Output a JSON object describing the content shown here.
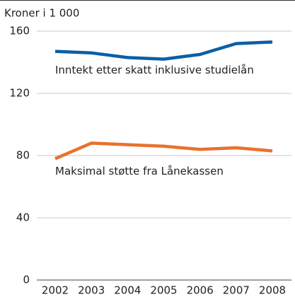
{
  "chart_data": {
    "type": "line",
    "y_axis_label": "Kroner i 1 000",
    "x": [
      "2002",
      "2003",
      "2004",
      "2005",
      "2006",
      "2007",
      "2008"
    ],
    "series": [
      {
        "name": "Inntekt etter skatt inklusive studielån",
        "color": "#0b5fa5",
        "values": [
          147,
          146,
          143,
          142,
          145,
          152,
          153
        ]
      },
      {
        "name": "Maksimal støtte fra Lånekassen",
        "color": "#e9722e",
        "values": [
          78,
          88,
          87,
          86,
          84,
          85,
          83
        ]
      }
    ],
    "ylim": [
      0,
      160
    ],
    "yticks": [
      0,
      40,
      80,
      120,
      160
    ],
    "grid": true
  }
}
